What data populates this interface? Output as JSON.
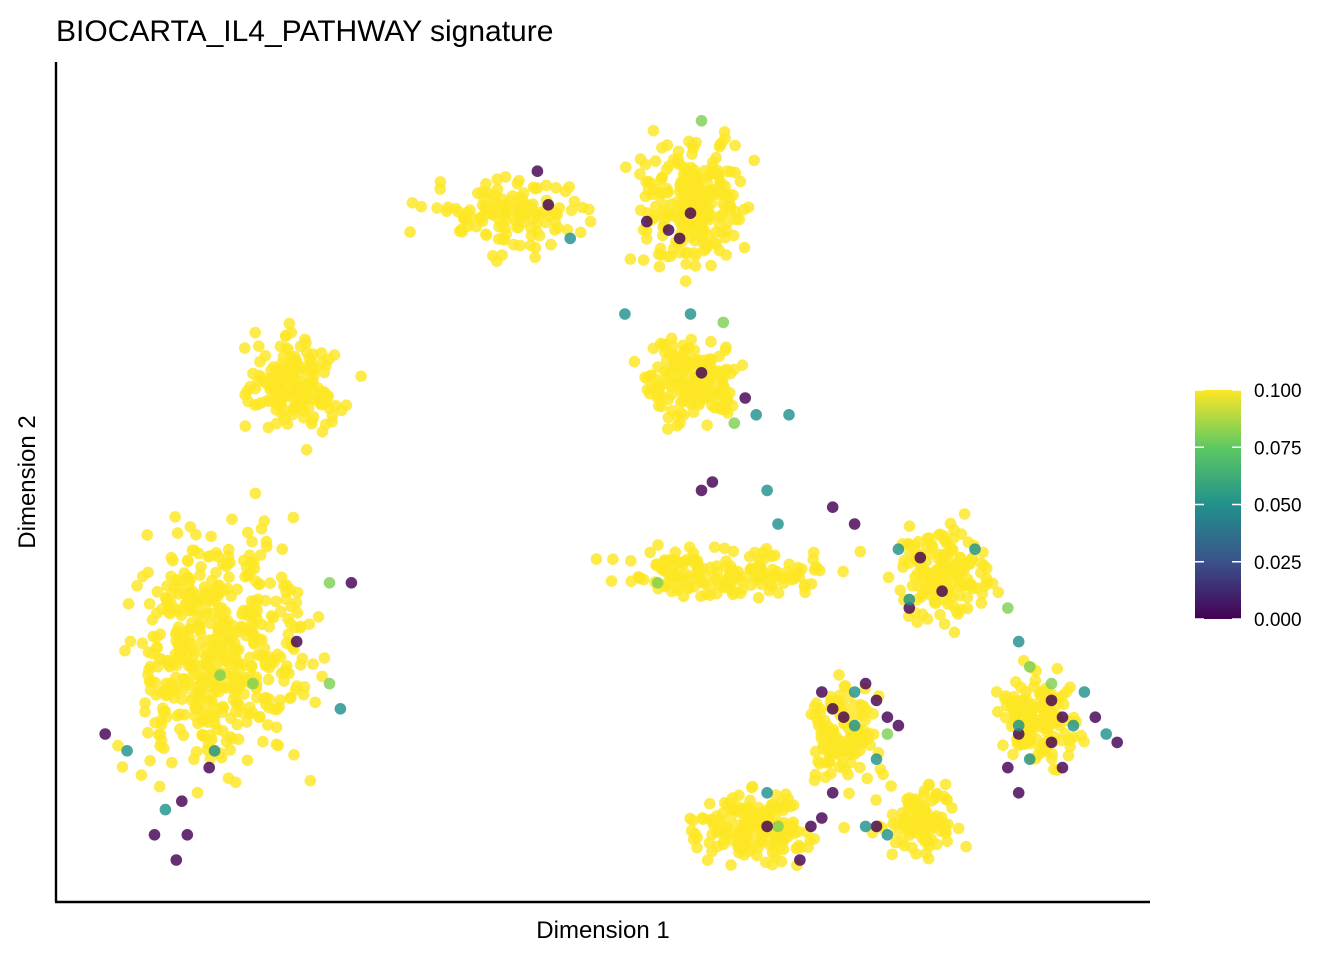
{
  "chart_data": {
    "type": "scatter",
    "title": "BIOCARTA_IL4_PATHWAY signature",
    "xlabel": "Dimension 1",
    "ylabel": "Dimension 2",
    "xlim": [
      0,
      100
    ],
    "ylim": [
      0,
      100
    ],
    "grid": false,
    "axis_ticks": false,
    "legend": {
      "type": "colorbar",
      "placement": "right",
      "title": "",
      "ticks": [
        "0.000",
        "0.025",
        "0.050",
        "0.075",
        "0.100"
      ],
      "tick_values": [
        0.0,
        0.025,
        0.05,
        0.075,
        0.1
      ],
      "range": [
        0.0,
        0.1
      ],
      "palette": [
        "#440154",
        "#3b528b",
        "#21918c",
        "#5ec962",
        "#fde725"
      ]
    },
    "point_style": {
      "opacity": 0.82
    },
    "clusters": [
      {
        "name": "",
        "center": [
          22,
          61
        ],
        "spread": [
          5.5,
          7
        ],
        "n": 170
      },
      {
        "name": "",
        "center": [
          15,
          30
        ],
        "spread": [
          10,
          17
        ],
        "n": 520
      },
      {
        "name": "",
        "center": [
          41,
          82
        ],
        "spread": [
          9,
          5
        ],
        "n": 130
      },
      {
        "name": "",
        "center": [
          58,
          83
        ],
        "spread": [
          6.5,
          9
        ],
        "n": 250
      },
      {
        "name": "",
        "center": [
          58,
          62
        ],
        "spread": [
          5,
          6
        ],
        "n": 170
      },
      {
        "name": "",
        "center": [
          62,
          39
        ],
        "spread": [
          13,
          4
        ],
        "n": 160
      },
      {
        "name": "",
        "center": [
          81,
          39
        ],
        "spread": [
          5,
          7
        ],
        "n": 160
      },
      {
        "name": "",
        "center": [
          90,
          22
        ],
        "spread": [
          4,
          7
        ],
        "n": 150
      },
      {
        "name": "",
        "center": [
          72,
          20
        ],
        "spread": [
          4,
          7
        ],
        "n": 120
      },
      {
        "name": "",
        "center": [
          64,
          9
        ],
        "spread": [
          7,
          5
        ],
        "n": 180
      },
      {
        "name": "",
        "center": [
          79,
          10
        ],
        "spread": [
          4,
          6
        ],
        "n": 110
      }
    ],
    "low_value_points": [
      [
        4.5,
        20,
        0.0
      ],
      [
        6.5,
        18,
        0.05
      ],
      [
        14.5,
        18,
        0.05
      ],
      [
        14,
        16,
        0.0
      ],
      [
        11.5,
        12,
        0.0
      ],
      [
        12,
        8,
        0.0
      ],
      [
        11,
        5,
        0.0
      ],
      [
        22,
        31,
        0.0
      ],
      [
        26,
        23,
        0.05
      ],
      [
        25,
        26,
        0.08
      ],
      [
        27,
        38,
        0.0
      ],
      [
        25,
        38,
        0.08
      ],
      [
        18,
        26,
        0.08
      ],
      [
        15,
        27,
        0.08
      ],
      [
        10,
        11,
        0.05
      ],
      [
        9,
        8,
        0.0
      ],
      [
        44,
        87,
        0.0
      ],
      [
        45,
        83,
        0.0
      ],
      [
        47,
        79,
        0.05
      ],
      [
        52,
        70,
        0.05
      ],
      [
        54,
        81,
        0.0
      ],
      [
        56,
        80,
        0.0
      ],
      [
        57,
        79,
        0.0
      ],
      [
        58,
        82,
        0.0
      ],
      [
        59,
        93,
        0.08
      ],
      [
        58,
        70,
        0.05
      ],
      [
        61,
        69,
        0.08
      ],
      [
        59,
        63,
        0.0
      ],
      [
        63,
        60,
        0.0
      ],
      [
        67,
        58,
        0.05
      ],
      [
        64,
        58,
        0.05
      ],
      [
        62,
        57,
        0.08
      ],
      [
        59,
        49,
        0.0
      ],
      [
        60,
        50,
        0.0
      ],
      [
        65,
        49,
        0.05
      ],
      [
        66,
        45,
        0.05
      ],
      [
        55,
        38,
        0.08
      ],
      [
        71,
        47,
        0.0
      ],
      [
        73,
        45,
        0.0
      ],
      [
        77,
        42,
        0.05
      ],
      [
        79,
        41,
        0.0
      ],
      [
        78,
        35,
        0.0
      ],
      [
        78,
        36,
        0.05
      ],
      [
        81,
        37,
        0.0
      ],
      [
        84,
        42,
        0.05
      ],
      [
        87,
        35,
        0.08
      ],
      [
        88,
        31,
        0.05
      ],
      [
        89,
        28,
        0.08
      ],
      [
        91,
        26,
        0.08
      ],
      [
        91,
        24,
        0.0
      ],
      [
        92,
        22,
        0.0
      ],
      [
        93,
        21,
        0.05
      ],
      [
        94,
        25,
        0.05
      ],
      [
        95,
        22,
        0.0
      ],
      [
        96,
        20,
        0.05
      ],
      [
        97,
        19,
        0.0
      ],
      [
        88,
        20,
        0.0
      ],
      [
        91,
        19,
        0.0
      ],
      [
        89,
        17,
        0.05
      ],
      [
        92,
        16,
        0.0
      ],
      [
        87,
        16,
        0.0
      ],
      [
        88,
        21,
        0.05
      ],
      [
        70,
        25,
        0.0
      ],
      [
        71,
        23,
        0.0
      ],
      [
        72,
        22,
        0.0
      ],
      [
        73,
        25,
        0.05
      ],
      [
        74,
        26,
        0.0
      ],
      [
        75,
        24,
        0.0
      ],
      [
        76,
        22,
        0.0
      ],
      [
        77,
        21,
        0.0
      ],
      [
        73,
        21,
        0.05
      ],
      [
        75,
        17,
        0.05
      ],
      [
        76,
        20,
        0.08
      ],
      [
        65,
        13,
        0.05
      ],
      [
        66,
        9,
        0.08
      ],
      [
        65,
        9,
        0.0
      ],
      [
        68,
        5,
        0.0
      ],
      [
        71,
        13,
        0.0
      ],
      [
        75,
        9,
        0.0
      ],
      [
        76,
        8,
        0.05
      ],
      [
        69,
        9,
        0.0
      ],
      [
        70,
        10,
        0.0
      ],
      [
        88,
        13,
        0.0
      ],
      [
        74,
        9,
        0.05
      ]
    ]
  }
}
